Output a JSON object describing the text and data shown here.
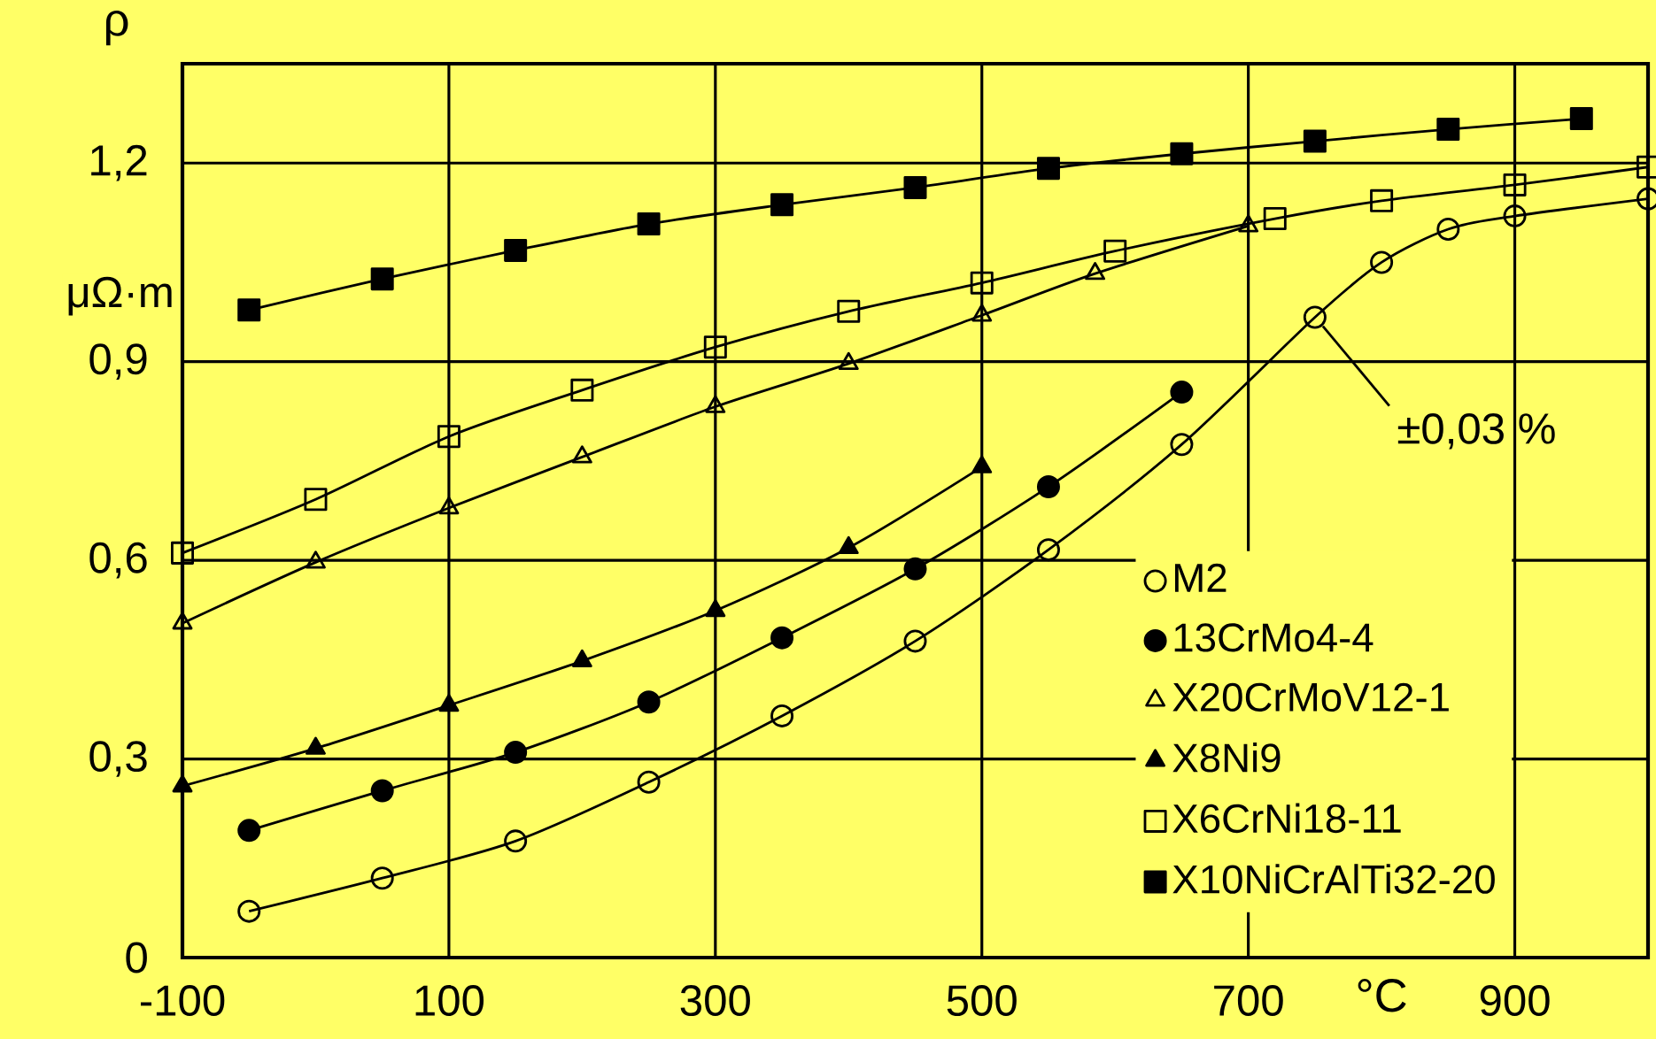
{
  "chart_data": {
    "type": "line",
    "ylabel": "ρ",
    "xlabel": "°C",
    "xlim": [
      -100,
      1000
    ],
    "xticks": [
      -100,
      100,
      300,
      500,
      700,
      900
    ],
    "ylim": [
      0,
      1.35
    ],
    "yticks": [
      {
        "value": 0,
        "label": "0"
      },
      {
        "value": 0.3,
        "label": "0,3"
      },
      {
        "value": 0.6,
        "label": "0,6"
      },
      {
        "value": 0.9,
        "label": "0,9"
      },
      {
        "value": 1.2,
        "label": "1,2"
      }
    ],
    "grid": true,
    "legend": "bottom right",
    "annotations": [
      "μΩ·m",
      {
        "text": "±0,03 %",
        "x": 750,
        "y": 0.967
      }
    ],
    "series": [
      {
        "name": "M2",
        "color": "#000000",
        "marker": "circle",
        "x": [
          -50,
          50,
          150,
          250,
          350,
          450,
          550,
          650,
          750,
          800,
          850,
          900,
          1000
        ],
        "values": [
          0.07,
          0.12,
          0.176,
          0.265,
          0.365,
          0.478,
          0.616,
          0.775,
          0.967,
          1.05,
          1.1,
          1.12,
          1.146
        ]
      },
      {
        "name": "13CrMo4-4",
        "color": "#000000",
        "marker": "circle",
        "x": [
          -50,
          50,
          150,
          250,
          350,
          450,
          550,
          650
        ],
        "values": [
          0.192,
          0.252,
          0.31,
          0.386,
          0.483,
          0.587,
          0.711,
          0.854
        ]
      },
      {
        "name": "X20CrMoV12-1",
        "color": "#000000",
        "marker": "triangle",
        "x": [
          -100,
          0,
          100,
          200,
          300,
          400,
          500,
          585,
          700
        ],
        "values": [
          0.505,
          0.597,
          0.679,
          0.756,
          0.832,
          0.897,
          0.97,
          1.033,
          1.105
        ]
      },
      {
        "name": "X8Ni9",
        "color": "#000000",
        "marker": "triangle",
        "x": [
          -100,
          0,
          100,
          200,
          300,
          400,
          500
        ],
        "values": [
          0.259,
          0.316,
          0.381,
          0.448,
          0.524,
          0.619,
          0.741
        ]
      },
      {
        "name": "X6CrNi18-11",
        "color": "#000000",
        "marker": "square",
        "x": [
          -100,
          0,
          100,
          200,
          300,
          400,
          500,
          600,
          720,
          800,
          900,
          1000
        ],
        "values": [
          0.611,
          0.692,
          0.787,
          0.857,
          0.922,
          0.976,
          1.019,
          1.067,
          1.116,
          1.143,
          1.167,
          1.194
        ]
      },
      {
        "name": "X10NiCrAlTi32-20",
        "color": "#000000",
        "marker": "square",
        "x": [
          -50,
          50,
          150,
          250,
          350,
          450,
          550,
          650,
          750,
          850,
          950
        ],
        "values": [
          0.978,
          1.025,
          1.068,
          1.108,
          1.137,
          1.163,
          1.192,
          1.214,
          1.233,
          1.251,
          1.267
        ]
      }
    ]
  }
}
